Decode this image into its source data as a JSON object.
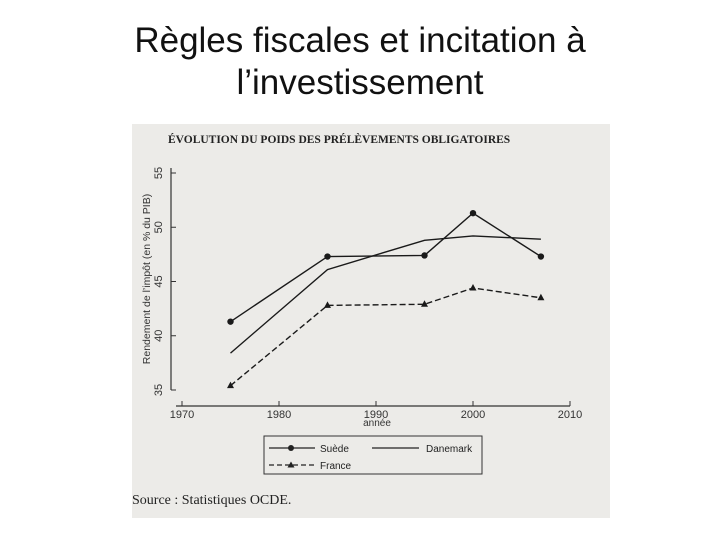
{
  "slide": {
    "title_line1": "Règles fiscales et incitation à",
    "title_line2": "l’investissement"
  },
  "source_text": "Source : Statistiques OCDE.",
  "chart_data": {
    "type": "line",
    "title": "ÉVOLUTION DU POIDS DES PRÉLÈVEMENTS OBLIGATOIRES",
    "xlabel": "année",
    "ylabel": "Rendement de l’impôt (en % du PIB)",
    "xlim": [
      1970,
      2010
    ],
    "ylim": [
      35,
      55
    ],
    "x_ticks": [
      1970,
      1980,
      1990,
      2000,
      2010
    ],
    "y_ticks": [
      35,
      40,
      45,
      50,
      55
    ],
    "grid": false,
    "legend_position": "bottom",
    "series": [
      {
        "name": "Suède",
        "style": "solid-circle",
        "x": [
          1975,
          1985,
          1995,
          2000,
          2007
        ],
        "values": [
          41.3,
          47.3,
          47.4,
          51.3,
          47.3
        ]
      },
      {
        "name": "Danemark",
        "style": "solid",
        "x": [
          1975,
          1985,
          1995,
          2000,
          2007
        ],
        "values": [
          38.4,
          46.1,
          48.8,
          49.2,
          48.9
        ]
      },
      {
        "name": "France",
        "style": "dashed-triangle",
        "x": [
          1975,
          1985,
          1995,
          2000,
          2007
        ],
        "values": [
          35.4,
          42.8,
          42.9,
          44.4,
          43.5
        ]
      }
    ]
  }
}
